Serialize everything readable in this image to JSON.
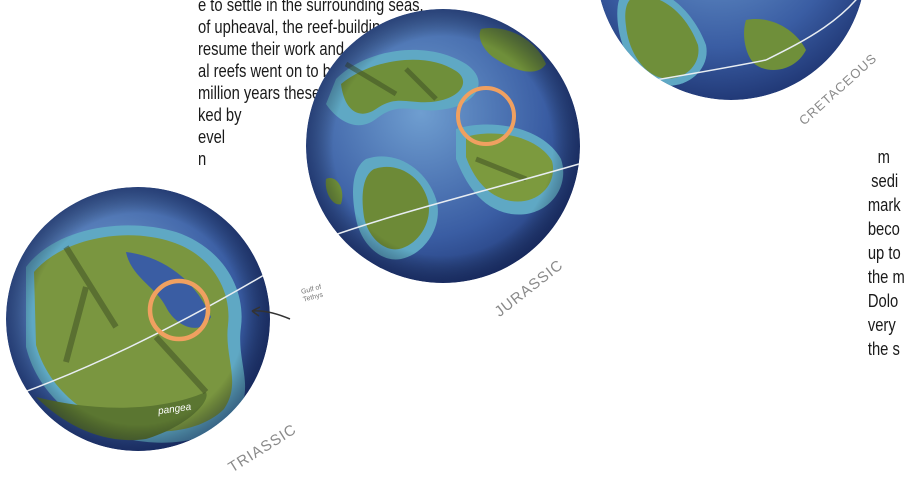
{
  "left_text": {
    "lines": [
      "e to settle in the surrounding seas.",
      "of upheaval, the reef-building",
      "resume their work and a new",
      "al reefs went on to be formed.",
      "million years these reefs",
      "ked by",
      "evel",
      "n"
    ]
  },
  "right_text": {
    "lines": [
      "m",
      "sedi",
      "mark",
      "beco",
      "up to",
      "the m",
      "Dolo",
      "very",
      "the s"
    ]
  },
  "globes": {
    "triassic": {
      "label": "TRIASSIC",
      "sea_label": "Gulf of Tethys",
      "continent_label": "pangea"
    },
    "jurassic": {
      "label": "JURASSIC"
    },
    "cretaceous": {
      "label": "CRETACEOUS"
    }
  },
  "colors": {
    "ocean": "#3f62a8",
    "shallow": "#5aa8c8",
    "land": "#6f8f3a",
    "highlight_ring": "#f0a060",
    "orbit": "#e8edf2"
  }
}
